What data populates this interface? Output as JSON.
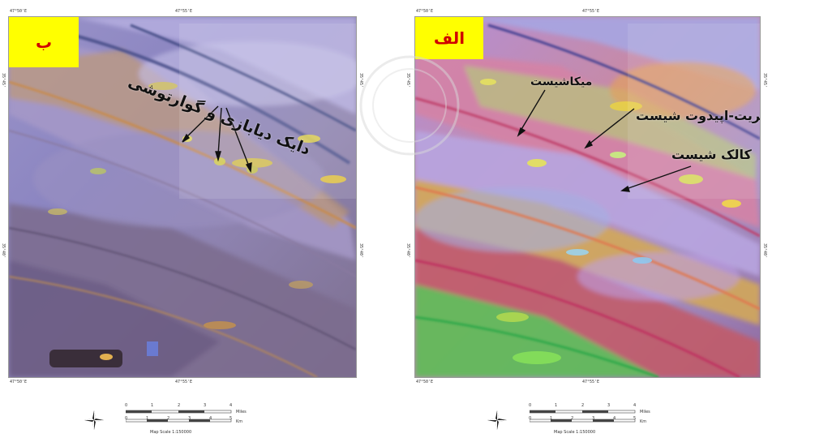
{
  "panels": [
    {
      "id": "left",
      "badge": "ب",
      "labels": [
        "دایک دیابازی و گوارتوشی"
      ],
      "coords": {
        "top_left": "47°50'E",
        "top_mid": "47°55'E",
        "bottom_left": "47°50'E",
        "bottom_mid": "47°55'E",
        "left_top": "35°45'",
        "left_mid": "35°40'",
        "right_top": "35°45'",
        "right_mid": "35°40'"
      },
      "scale": {
        "ticks_top": [
          "0",
          "1",
          "2",
          "3",
          "4"
        ],
        "ticks_bottom": [
          "0",
          "1",
          "2",
          "3",
          "4",
          "5"
        ],
        "unit_top": "Miles",
        "unit_bottom": "Km",
        "caption": "Map Scale 1:150000"
      }
    },
    {
      "id": "right",
      "badge": "الف",
      "labels": [
        "میکاشیست",
        "کلریت-اپیدوت شیست",
        "کالک شیست"
      ],
      "coords": {
        "top_left": "47°50'E",
        "top_mid": "47°55'E",
        "bottom_left": "47°50'E",
        "bottom_mid": "47°55'E",
        "left_top": "35°45'",
        "left_mid": "35°40'",
        "right_top": "35°45'",
        "right_mid": "35°40'"
      },
      "scale": {
        "ticks_top": [
          "0",
          "1",
          "2",
          "3",
          "4"
        ],
        "ticks_bottom": [
          "0",
          "1",
          "2",
          "3",
          "4",
          "5"
        ],
        "unit_top": "Miles",
        "unit_bottom": "Km",
        "caption": "Map Scale 1:150000"
      }
    }
  ],
  "icons": {
    "north_arrow": "compass-rose-icon"
  },
  "colors": {
    "badge_bg": "#ffff00",
    "badge_text": "#d00000",
    "arrow": "#111111"
  }
}
